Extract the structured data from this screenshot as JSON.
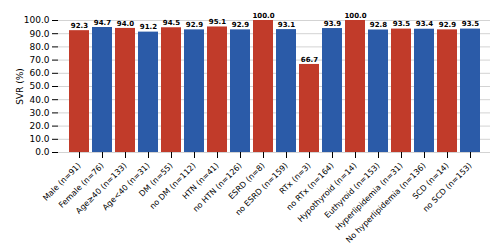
{
  "chart_data": {
    "type": "bar",
    "categories": [
      "Male (n=91)",
      "Female (n=76)",
      "Age≥40 (n=133)",
      "Age<40 (n=31)",
      "DM (n=55)",
      "no DM (n=112)",
      "HTN (n=41)",
      "no HTN (n=126)",
      "ESRD (n=8)",
      "no ESRD (n=159)",
      "RTx (n=3)",
      "no RTx (n=164)",
      "Hypothyroid (n=14)",
      "Euthyroid (n=153)",
      "Hyperlipidemia (n=31)",
      "No hyperlipidemia (n=136)",
      "SCD (n=14)",
      "no SCD (n=153)"
    ],
    "values": [
      92.3,
      94.7,
      94.0,
      91.2,
      94.5,
      92.9,
      95.1,
      92.9,
      100.0,
      93.1,
      66.7,
      93.9,
      100.0,
      92.8,
      93.5,
      93.4,
      92.9,
      93.5
    ],
    "value_labels": [
      "92.3",
      "94.7",
      "94.0",
      "91.2",
      "94.5",
      "92.9",
      "95.1",
      "92.9",
      "100.0",
      "93.1",
      "66.7",
      "93.9",
      "100.0",
      "92.8",
      "93.5",
      "93.4",
      "92.9",
      "93.5"
    ],
    "colors": [
      "#C13B2A",
      "#2B5BA8",
      "#C13B2A",
      "#2B5BA8",
      "#C13B2A",
      "#2B5BA8",
      "#C13B2A",
      "#2B5BA8",
      "#C13B2A",
      "#2B5BA8",
      "#C13B2A",
      "#2B5BA8",
      "#C13B2A",
      "#2B5BA8",
      "#C13B2A",
      "#2B5BA8",
      "#C13B2A",
      "#2B5BA8"
    ],
    "ylabel": "SVR (%)",
    "ylim": [
      0,
      100
    ],
    "yticks": [
      {
        "value": 0,
        "label": "0.0"
      },
      {
        "value": 10,
        "label": "10.0"
      },
      {
        "value": 20,
        "label": "20.0"
      },
      {
        "value": 30,
        "label": "30.0"
      },
      {
        "value": 40,
        "label": "40.0"
      },
      {
        "value": 50,
        "label": "50.0"
      },
      {
        "value": 60,
        "label": "60.0"
      },
      {
        "value": 70,
        "label": "70.0"
      },
      {
        "value": 80,
        "label": "80.0"
      },
      {
        "value": 90,
        "label": "90.0"
      },
      {
        "value": 100,
        "label": "100.0"
      }
    ],
    "grid": true,
    "data_labels": true
  }
}
